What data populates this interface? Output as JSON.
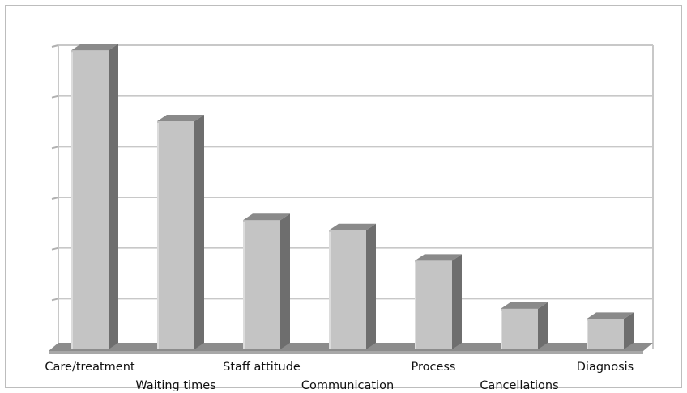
{
  "chart_data": {
    "type": "bar",
    "title": "",
    "xlabel": "",
    "ylabel": "",
    "ylim": [
      0,
      120
    ],
    "grid": true,
    "bar_style": "3d",
    "colors": {
      "bar_front": "#c4c4c4",
      "bar_side": "#6e6e6e",
      "bar_top": "#8a8a8a",
      "floor": "#8c8c8c",
      "gridline": "#c8c8c8"
    },
    "categories": [
      "Care/treatment",
      "Waiting times",
      "Staff attitude",
      "Communication",
      "Process",
      "Cancellations",
      "Diagnosis"
    ],
    "values": [
      118,
      90,
      51,
      47,
      35,
      16,
      12
    ]
  }
}
